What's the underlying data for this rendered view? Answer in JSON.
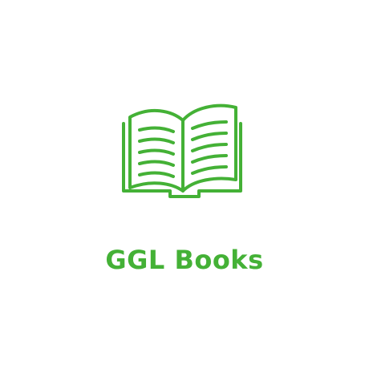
{
  "brand": {
    "name": "GGL Books",
    "icon": "open-book-icon",
    "color": "#44b136"
  }
}
